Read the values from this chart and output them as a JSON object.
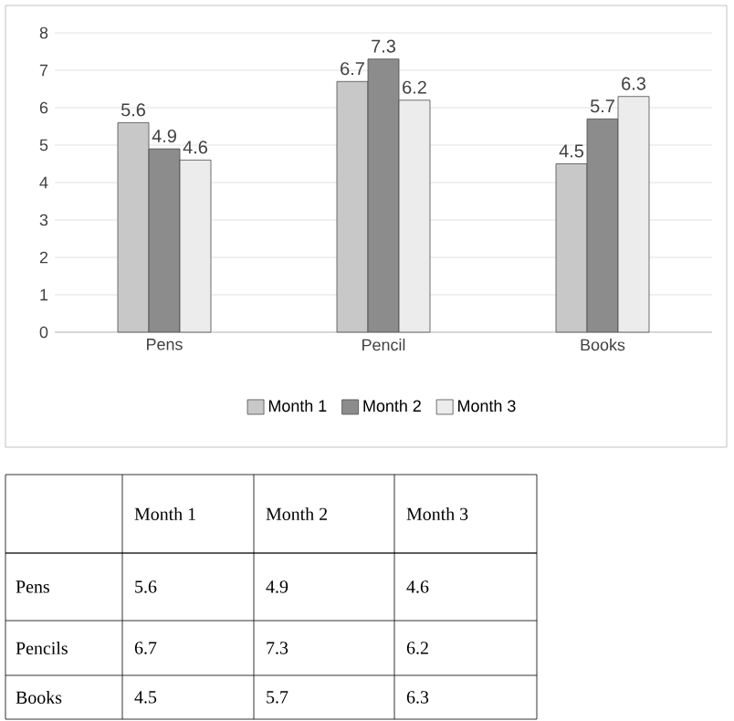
{
  "chart_data": {
    "type": "bar",
    "categories": [
      "Pens",
      "Pencil",
      "Books"
    ],
    "series": [
      {
        "name": "Month 1",
        "color": "#c8c8c8",
        "values": [
          5.6,
          6.7,
          4.5
        ]
      },
      {
        "name": "Month 2",
        "color": "#8c8c8c",
        "values": [
          4.9,
          7.3,
          5.7
        ]
      },
      {
        "name": "Month 3",
        "color": "#ececec",
        "values": [
          4.6,
          6.2,
          6.3
        ]
      }
    ],
    "ylim": [
      0,
      8
    ],
    "yticks": [
      0,
      1,
      2,
      3,
      4,
      5,
      6,
      7,
      8
    ],
    "grid": "y",
    "legend": "bottom",
    "data_labels": true,
    "annotations": [
      "Pens",
      "5.6",
      "4.9",
      "4.6",
      "Pencils",
      "6.7",
      "7.3",
      "6.2",
      "Books",
      "4.5",
      "5.7",
      "6.3"
    ]
  }
}
